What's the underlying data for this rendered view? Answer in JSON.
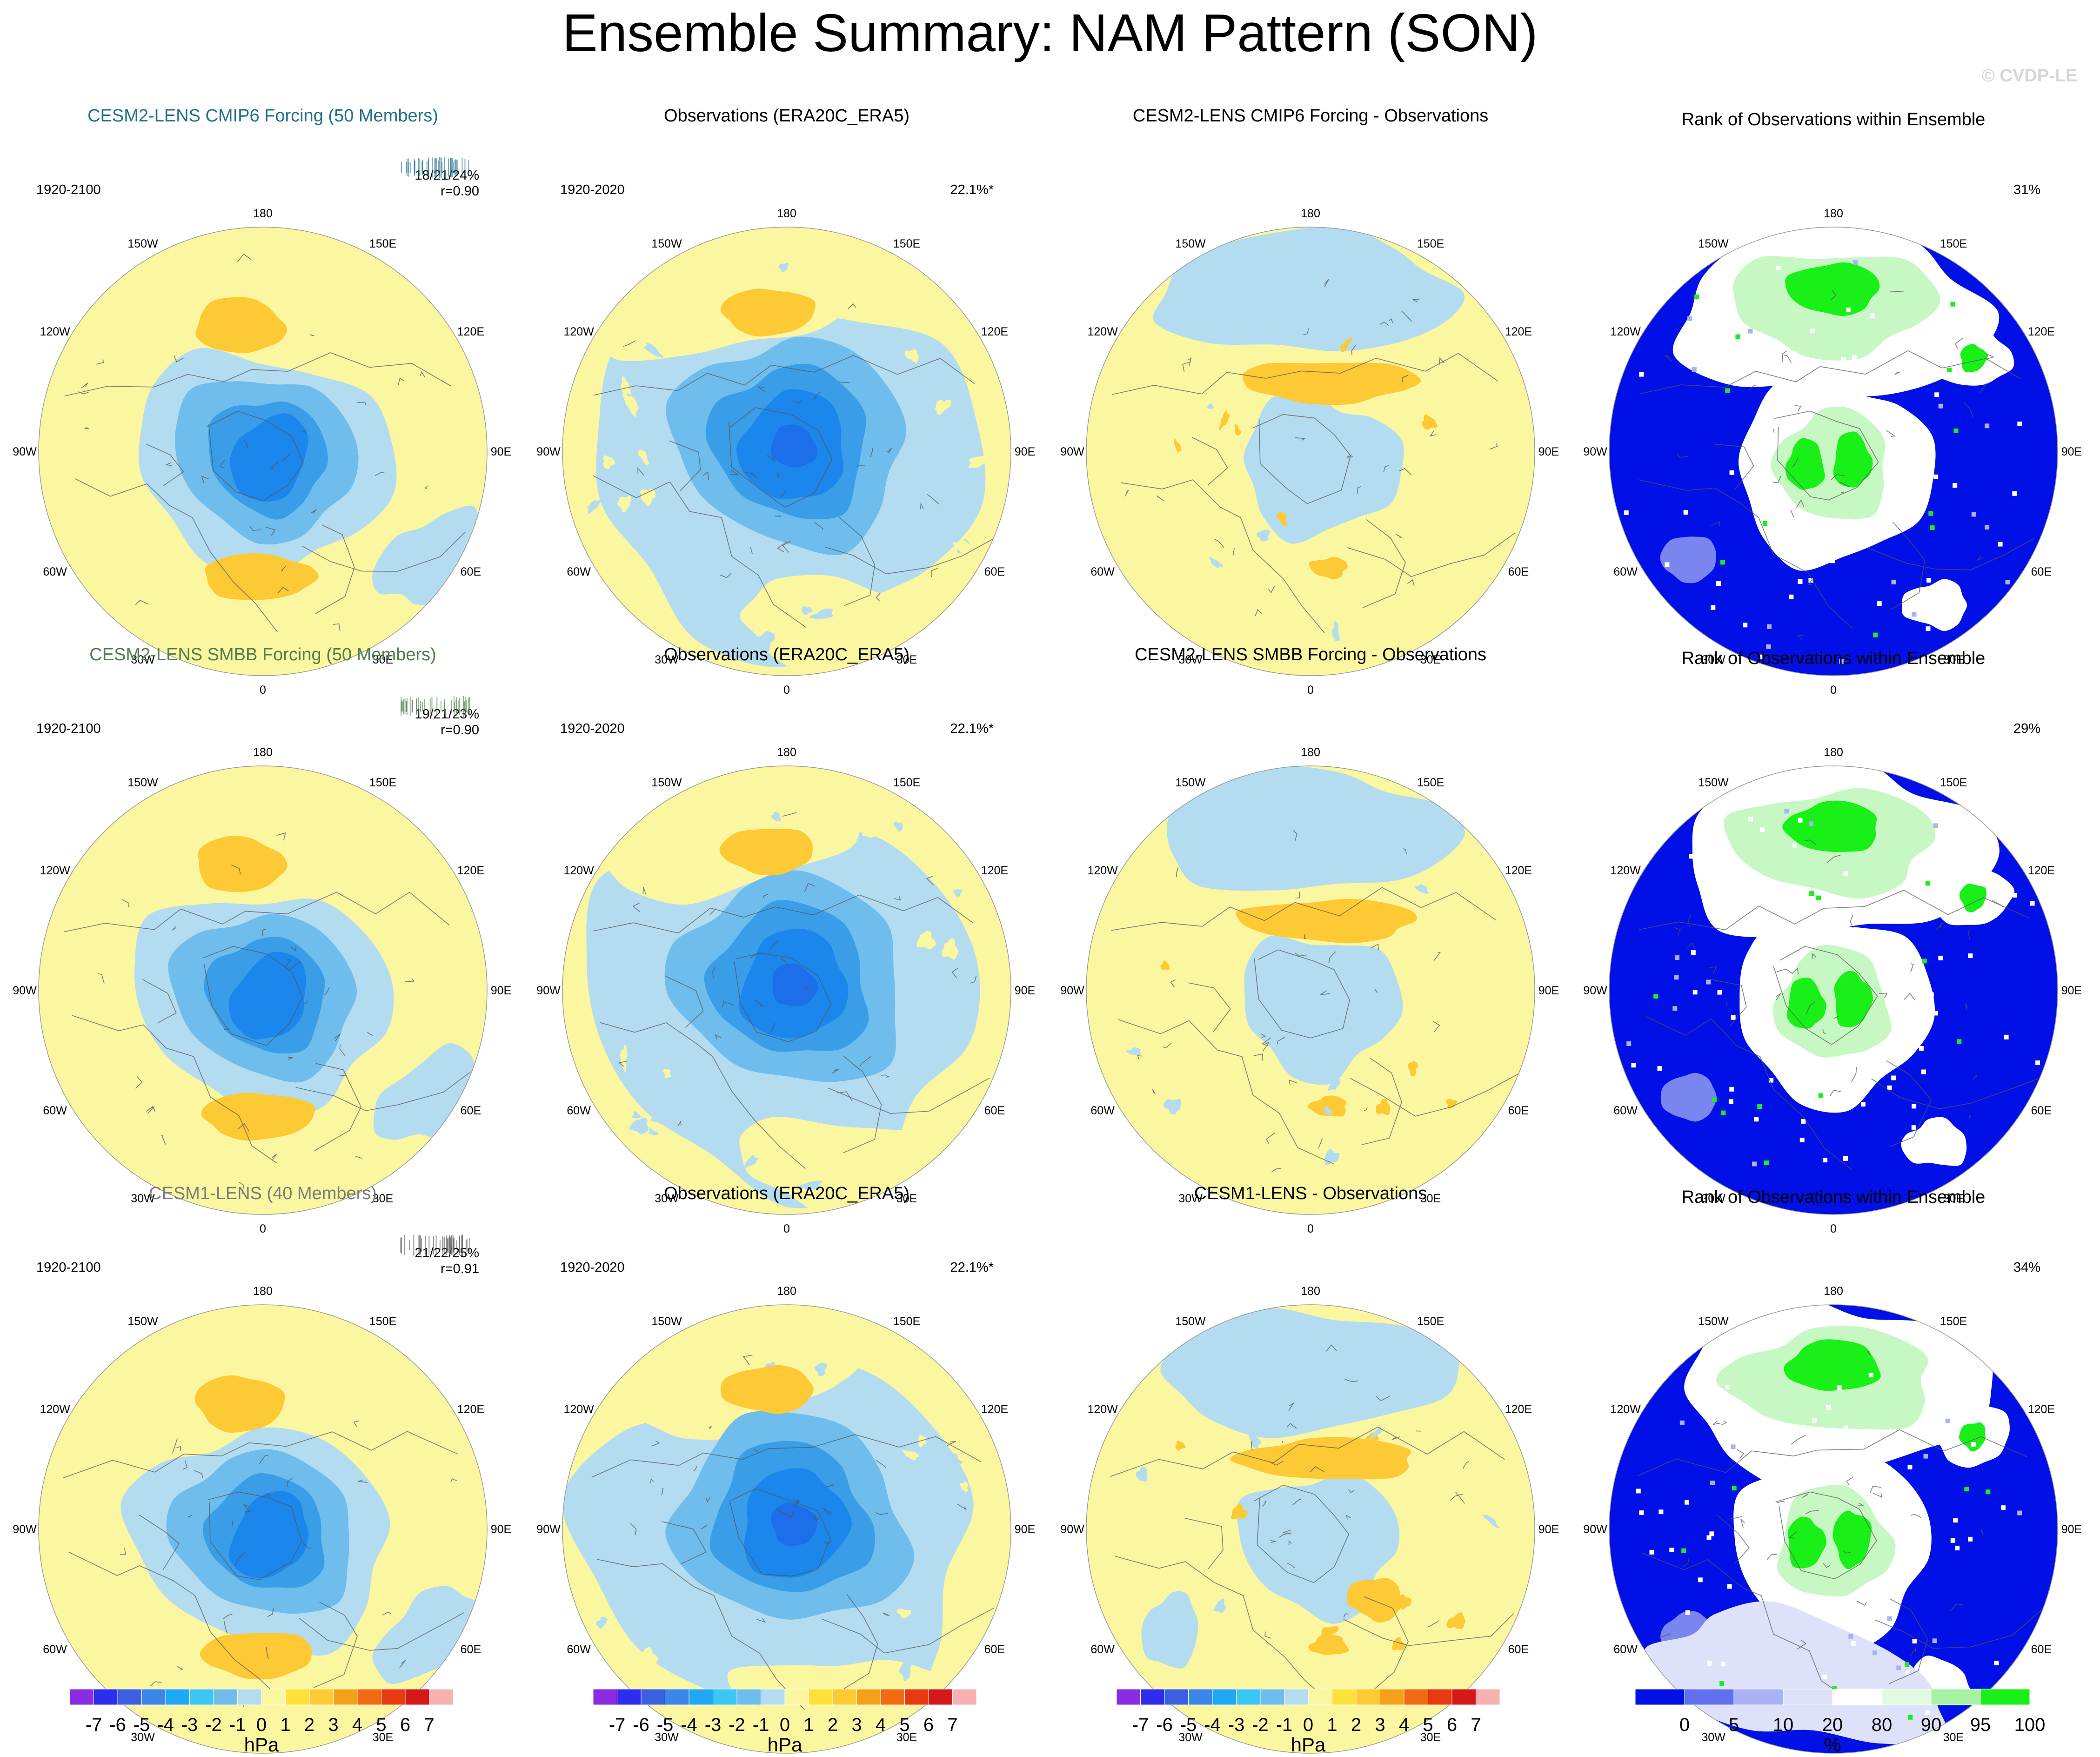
{
  "figure": {
    "title": "Ensemble Summary: NAM Pattern (SON)",
    "watermark": "© CVDP-LE"
  },
  "colors": {
    "ocean_yellow": "#fbf6a0",
    "light_blue": "#b3dcf1",
    "mid_blue": "#6fbdec",
    "blue3": "#3a9de8",
    "deep_blue": "#1b86ec",
    "orange": "#fdc934",
    "rank_dark": "#0010e6",
    "rank_white": "#ffffff",
    "rank_green": "#18f018",
    "rank_lightgreen": "#c7f7c3"
  },
  "rows": [
    {
      "model": {
        "title": "CESM2-LENS CMIP6 Forcing (50 Members)",
        "title_color": "#1f6e8c",
        "years": "1920-2100",
        "pct": "18/21/24%",
        "r": "r=0.90",
        "tick_color": "#1f6e8c"
      },
      "obs": {
        "title": "Observations (ERA20C_ERA5)",
        "years": "1920-2020",
        "pct": "22.1%*"
      },
      "diff": {
        "title": "CESM2-LENS CMIP6 Forcing - Observations"
      },
      "rank": {
        "title": "Rank of Observations within Ensemble",
        "pct": "31%"
      }
    },
    {
      "model": {
        "title": "CESM2-LENS SMBB Forcing (50 Members)",
        "title_color": "#4e7d4e",
        "years": "1920-2100",
        "pct": "19/21/23%",
        "r": "r=0.90",
        "tick_color": "#4e7d4e"
      },
      "obs": {
        "title": "Observations (ERA20C_ERA5)",
        "years": "1920-2020",
        "pct": "22.1%*"
      },
      "diff": {
        "title": "CESM2-LENS SMBB Forcing - Observations"
      },
      "rank": {
        "title": "Rank of Observations within Ensemble",
        "pct": "29%"
      }
    },
    {
      "model": {
        "title": "CESM1-LENS (40 Members)",
        "title_color": "#7a7a7a",
        "years": "1920-2100",
        "pct": "21/22/25%",
        "r": "r=0.91",
        "tick_color": "#555555"
      },
      "obs": {
        "title": "Observations (ERA20C_ERA5)",
        "years": "1920-2020",
        "pct": "22.1%*"
      },
      "diff": {
        "title": "CESM1-LENS - Observations"
      },
      "rank": {
        "title": "Rank of Observations within Ensemble",
        "pct": "34%"
      }
    }
  ],
  "map_labels": [
    "180",
    "150E",
    "120E",
    "90E",
    "60E",
    "30E",
    "0",
    "30W",
    "60W",
    "90W",
    "120W",
    "150W"
  ],
  "colorbars": {
    "hpa": {
      "unit": "hPa",
      "ticks": [
        "-7",
        "-6",
        "-5",
        "-4",
        "-3",
        "-2",
        "-1",
        "0",
        "1",
        "2",
        "3",
        "4",
        "5",
        "6",
        "7"
      ],
      "colors": [
        "#8b2be2",
        "#2d2df0",
        "#3a5fe0",
        "#3a86ea",
        "#1fa8f5",
        "#3cc6f6",
        "#6fbdec",
        "#b3dcf1",
        "#fbf6a0",
        "#fde03a",
        "#fdc934",
        "#f6a01a",
        "#f26a12",
        "#e83a10",
        "#d61818",
        "#f8b0b0"
      ]
    },
    "rank": {
      "unit": "%",
      "ticks": [
        "0",
        "5",
        "10",
        "20",
        "80",
        "90",
        "95",
        "100"
      ],
      "colors": [
        "#0010e6",
        "#6070ee",
        "#a8b2f4",
        "#dde2fa",
        "#ffffff",
        "#e0fbe0",
        "#a6f2a2",
        "#18f018"
      ]
    }
  },
  "chart_data": [
    {
      "type": "heatmap",
      "title": "CESM2-LENS CMIP6 Forcing (50 Members)",
      "projection": "north polar stereographic",
      "units": "hPa",
      "period": "1920-2100",
      "variance_explained": "18/21/24%",
      "pattern_correlation": 0.9,
      "min_contour": -6,
      "max_contour": 2
    },
    {
      "type": "heatmap",
      "title": "Observations (ERA20C_ERA5)",
      "projection": "north polar stereographic",
      "units": "hPa",
      "period": "1920-2020",
      "variance_explained": "22.1%*",
      "min_contour": -6,
      "max_contour": 2
    },
    {
      "type": "heatmap",
      "title": "CESM2-LENS CMIP6 Forcing - Observations",
      "units": "hPa",
      "min_contour": -2,
      "max_contour": 2
    },
    {
      "type": "heatmap",
      "title": "Rank of Observations within Ensemble",
      "units": "%",
      "area_pct": "31%"
    },
    {
      "type": "heatmap",
      "title": "CESM2-LENS SMBB Forcing (50 Members)",
      "units": "hPa",
      "period": "1920-2100",
      "variance_explained": "19/21/23%",
      "pattern_correlation": 0.9
    },
    {
      "type": "heatmap",
      "title": "CESM2-LENS SMBB Forcing - Observations",
      "units": "hPa"
    },
    {
      "type": "heatmap",
      "title": "Rank of Observations within Ensemble",
      "units": "%",
      "area_pct": "29%"
    },
    {
      "type": "heatmap",
      "title": "CESM1-LENS (40 Members)",
      "units": "hPa",
      "period": "1920-2100",
      "variance_explained": "21/22/25%",
      "pattern_correlation": 0.91
    },
    {
      "type": "heatmap",
      "title": "CESM1-LENS - Observations",
      "units": "hPa"
    },
    {
      "type": "heatmap",
      "title": "Rank of Observations within Ensemble",
      "units": "%",
      "area_pct": "34%"
    }
  ]
}
